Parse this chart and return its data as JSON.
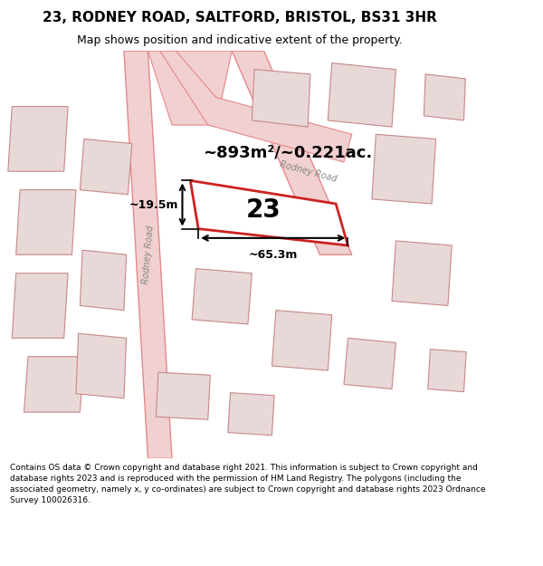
{
  "title": "23, RODNEY ROAD, SALTFORD, BRISTOL, BS31 3HR",
  "subtitle": "Map shows position and indicative extent of the property.",
  "footer": "Contains OS data © Crown copyright and database right 2021. This information is subject to Crown copyright and database rights 2023 and is reproduced with the permission of HM Land Registry. The polygons (including the associated geometry, namely x, y co-ordinates) are subject to Crown copyright and database rights 2023 Ordnance Survey 100026316.",
  "background_color": "#f5f0f0",
  "map_background": "#f5eeee",
  "road_color": "#e8888a",
  "building_fill": "#e8d8d8",
  "building_edge": "#c88888",
  "highlight_fill": "#ffffff",
  "highlight_edge": "#cc2222",
  "area_text": "~893m²/~0.221ac.",
  "property_number": "23",
  "dim1_text": "~19.5m",
  "dim2_text": "~65.3m",
  "road_label1": "Rodney Road",
  "road_label2": "Rodney Road"
}
